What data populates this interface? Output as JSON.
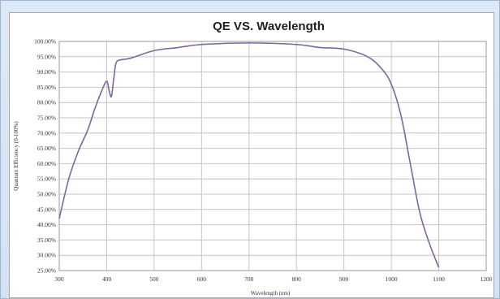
{
  "chart_data": {
    "type": "line",
    "title": "QE VS. Wavelength",
    "xlabel": "Wavelength (nm)",
    "ylabel": "Quantum Efficiency (0-100%)",
    "xlim": [
      300,
      1200
    ],
    "ylim": [
      25,
      100
    ],
    "x_ticks": [
      300,
      400,
      500,
      600,
      700,
      800,
      900,
      1000,
      1100,
      1200
    ],
    "y_ticks": [
      "100.00%",
      "95.00%",
      "90.00%",
      "85.00%",
      "80.00%",
      "75.00%",
      "70.00%",
      "65.00%",
      "60.00%",
      "55.00%",
      "50.00%",
      "45.00%",
      "40.00%",
      "35.00%",
      "30.00%",
      "25.00%"
    ],
    "grid": true,
    "legend": "none",
    "series": [
      {
        "color": "#8064a2",
        "x": [
          300,
          320,
          340,
          360,
          375,
          390,
          400,
          405,
          410,
          415,
          420,
          430,
          450,
          500,
          550,
          600,
          700,
          800,
          850,
          900,
          950,
          980,
          1000,
          1020,
          1040,
          1060,
          1080,
          1100
        ],
        "y": [
          42,
          55,
          64,
          71,
          78,
          84,
          87,
          84,
          82,
          88,
          93,
          94,
          94.5,
          97,
          98,
          99,
          99.5,
          99,
          98,
          97.5,
          95,
          91,
          86,
          76,
          60,
          44,
          34,
          26
        ]
      }
    ]
  }
}
